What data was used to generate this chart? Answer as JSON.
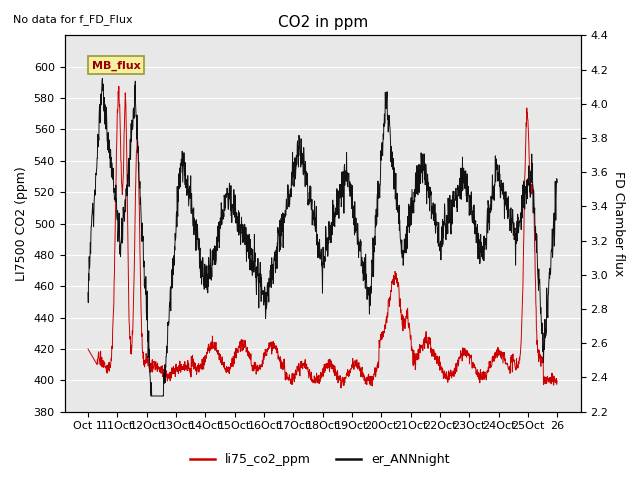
{
  "title": "CO2 in ppm",
  "top_left_text": "No data for f_FD_Flux",
  "legend_box_text": "MB_flux",
  "ylabel_left": "LI7500 CO2 (ppm)",
  "ylabel_right": "FD Chamber flux",
  "ylim_left": [
    380,
    620
  ],
  "ylim_right": [
    2.2,
    4.4
  ],
  "yticks_left": [
    380,
    400,
    420,
    440,
    460,
    480,
    500,
    520,
    540,
    560,
    580,
    600
  ],
  "yticks_right": [
    2.2,
    2.4,
    2.6,
    2.8,
    3.0,
    3.2,
    3.4,
    3.6,
    3.8,
    4.0,
    4.2,
    4.4
  ],
  "xtick_labels": [
    "Oct 1",
    "11Oct",
    "12Oct",
    "13Oct",
    "14Oct",
    "15Oct",
    "16Oct",
    "17Oct",
    "18Oct",
    "19Oct",
    "20Oct",
    "21Oct",
    "22Oct",
    "23Oct",
    "24Oct",
    "25Oct",
    "26"
  ],
  "plot_bg_color": "#e8e8e8",
  "line1_color": "#cc0000",
  "line2_color": "#111111",
  "legend_entries": [
    "li75_co2_ppm",
    "er_ANNnight"
  ],
  "legend_colors": [
    "#cc0000",
    "#111111"
  ],
  "n_points": 1600
}
